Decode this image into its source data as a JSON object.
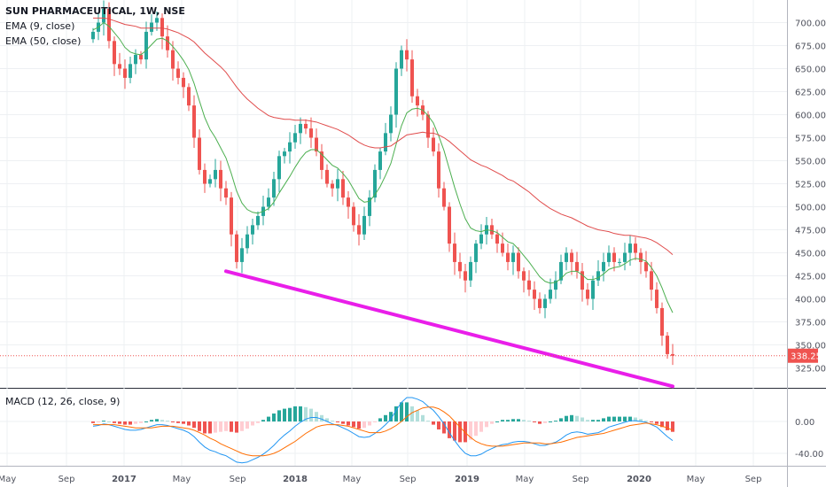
{
  "legend": {
    "symbol": "SUN PHARMACEUTICAL, 1W, NSE",
    "ema_fast": "EMA (9, close)",
    "ema_slow": "EMA (50, close)",
    "macd": "MACD (12, 26, close, 9)"
  },
  "last_price_label": "338.25",
  "colors": {
    "up": "#26a69a",
    "down": "#ef5350",
    "ema_fast": "#4caf50",
    "ema_slow": "#e04b4b",
    "trendline": "#e91ee9",
    "macd_line": "#2196f3",
    "signal_line": "#ff6d00",
    "hist_up_strong": "#26a69a",
    "hist_up_weak": "#b2dfdb",
    "hist_down_strong": "#ef5350",
    "hist_down_weak": "#ffcdd2",
    "grid": "#eef0f3"
  },
  "chart_data": [
    {
      "type": "candlestick",
      "title": "SUN PHARMACEUTICAL, 1W, NSE",
      "ylim": [
        290,
        720
      ],
      "y_ticks": [
        "325.00",
        "350.00",
        "375.00",
        "400.00",
        "425.00",
        "450.00",
        "475.00",
        "500.00",
        "525.00",
        "550.00",
        "575.00",
        "600.00",
        "625.00",
        "650.00",
        "675.00",
        "700.00"
      ],
      "x_ticks": [
        "May",
        "Sep",
        "2017",
        "May",
        "Sep",
        "2018",
        "May",
        "Sep",
        "2019",
        "May",
        "Sep",
        "2020",
        "May",
        "Sep"
      ],
      "closes": [
        690,
        700,
        715,
        680,
        655,
        650,
        640,
        655,
        665,
        660,
        690,
        700,
        705,
        685,
        670,
        650,
        640,
        630,
        610,
        575,
        540,
        525,
        530,
        540,
        520,
        510,
        470,
        440,
        455,
        470,
        480,
        490,
        500,
        510,
        530,
        555,
        560,
        570,
        580,
        590,
        585,
        575,
        560,
        540,
        525,
        520,
        530,
        510,
        500,
        480,
        470,
        490,
        510,
        540,
        560,
        580,
        600,
        650,
        670,
        660,
        620,
        610,
        600,
        575,
        560,
        520,
        500,
        460,
        440,
        430,
        420,
        440,
        460,
        470,
        480,
        470,
        460,
        450,
        440,
        450,
        430,
        420,
        410,
        400,
        390,
        400,
        410,
        420,
        440,
        450,
        440,
        430,
        410,
        400,
        420,
        430,
        440,
        450,
        440,
        440,
        450,
        460,
        450,
        440,
        430,
        410,
        390,
        360,
        340,
        338.25
      ],
      "last_close": 338.25,
      "series": [
        {
          "name": "EMA (9, close)",
          "values": [
            692,
            695,
            700,
            696,
            689,
            682,
            673,
            668,
            666,
            665,
            670,
            676,
            682,
            683,
            680,
            674,
            667,
            659,
            649,
            634,
            615,
            597,
            584,
            575,
            564,
            553,
            536,
            517,
            504,
            497,
            494,
            493,
            495,
            498,
            505,
            515,
            524,
            533,
            543,
            552,
            559,
            562,
            562,
            557,
            551,
            545,
            542,
            536,
            529,
            519,
            509,
            505,
            506,
            513,
            522,
            534,
            547,
            568,
            588,
            602,
            606,
            607,
            605,
            599,
            591,
            577,
            561,
            541,
            521,
            503,
            487,
            477,
            474,
            473,
            475,
            474,
            472,
            467,
            462,
            460,
            454,
            447,
            440,
            432,
            424,
            419,
            417,
            418,
            422,
            428,
            430,
            430,
            426,
            421,
            421,
            423,
            427,
            432,
            434,
            435,
            438,
            442,
            444,
            443,
            441,
            434,
            425,
            412,
            397,
            385
          ]
        },
        {
          "name": "EMA (50, close)",
          "values": [
            705,
            705,
            705,
            704,
            702,
            700,
            698,
            697,
            696,
            694,
            694,
            694,
            694,
            694,
            693,
            691,
            689,
            686,
            683,
            679,
            673,
            667,
            662,
            657,
            652,
            646,
            638,
            630,
            623,
            617,
            612,
            607,
            603,
            599,
            597,
            596,
            595,
            595,
            594,
            594,
            594,
            593,
            592,
            590,
            588,
            586,
            584,
            581,
            578,
            574,
            570,
            567,
            565,
            564,
            564,
            565,
            566,
            570,
            574,
            578,
            579,
            580,
            581,
            580,
            580,
            578,
            575,
            571,
            566,
            561,
            556,
            551,
            548,
            545,
            543,
            540,
            537,
            534,
            530,
            528,
            524,
            520,
            516,
            511,
            506,
            502,
            498,
            495,
            492,
            490,
            488,
            485,
            482,
            479,
            477,
            475,
            474,
            473,
            471,
            470,
            469,
            469,
            468,
            467,
            466,
            464,
            461,
            457,
            453,
            448
          ]
        }
      ],
      "trendline": {
        "from": {
          "week": 25,
          "price": 430
        },
        "to": {
          "week": 109,
          "price": 305
        }
      }
    },
    {
      "type": "macd",
      "title": "MACD (12, 26, close, 9)",
      "ylim": [
        -50,
        40
      ],
      "y_ticks": [
        "0.00",
        "-40.00"
      ],
      "macd": [
        -6,
        -5,
        -3,
        -4,
        -6,
        -8,
        -10,
        -11,
        -11,
        -10,
        -8,
        -6,
        -4,
        -4,
        -5,
        -7,
        -9,
        -11,
        -14,
        -19,
        -26,
        -32,
        -36,
        -38,
        -41,
        -43,
        -47,
        -51,
        -52,
        -51,
        -48,
        -45,
        -41,
        -36,
        -30,
        -23,
        -17,
        -12,
        -6,
        -1,
        3,
        5,
        5,
        3,
        0,
        -3,
        -5,
        -8,
        -11,
        -15,
        -19,
        -20,
        -19,
        -15,
        -10,
        -4,
        3,
        14,
        24,
        30,
        30,
        28,
        25,
        19,
        14,
        6,
        -3,
        -14,
        -24,
        -33,
        -40,
        -43,
        -43,
        -41,
        -37,
        -34,
        -31,
        -29,
        -28,
        -26,
        -25,
        -25,
        -26,
        -28,
        -30,
        -30,
        -28,
        -26,
        -22,
        -17,
        -14,
        -13,
        -14,
        -16,
        -15,
        -14,
        -11,
        -7,
        -5,
        -3,
        -1,
        1,
        1,
        0,
        -1,
        -4,
        -7,
        -13,
        -19,
        -24
      ],
      "signal": [
        -4,
        -4,
        -4,
        -4,
        -4,
        -5,
        -6,
        -7,
        -8,
        -8,
        -8,
        -8,
        -7,
        -6,
        -6,
        -6,
        -7,
        -8,
        -9,
        -11,
        -14,
        -17,
        -21,
        -24,
        -28,
        -31,
        -34,
        -37,
        -40,
        -42,
        -43,
        -43,
        -43,
        -42,
        -40,
        -37,
        -33,
        -29,
        -25,
        -20,
        -15,
        -11,
        -7,
        -5,
        -4,
        -4,
        -4,
        -5,
        -6,
        -8,
        -10,
        -12,
        -14,
        -14,
        -14,
        -12,
        -9,
        -5,
        0,
        6,
        11,
        14,
        17,
        18,
        18,
        16,
        12,
        7,
        0,
        -7,
        -14,
        -20,
        -25,
        -28,
        -30,
        -31,
        -31,
        -31,
        -30,
        -29,
        -28,
        -27,
        -27,
        -27,
        -27,
        -28,
        -28,
        -27,
        -26,
        -24,
        -22,
        -20,
        -19,
        -18,
        -17,
        -16,
        -15,
        -13,
        -11,
        -9,
        -7,
        -5,
        -4,
        -3,
        -2,
        -3,
        -4,
        -6,
        -8,
        -11
      ]
    }
  ]
}
